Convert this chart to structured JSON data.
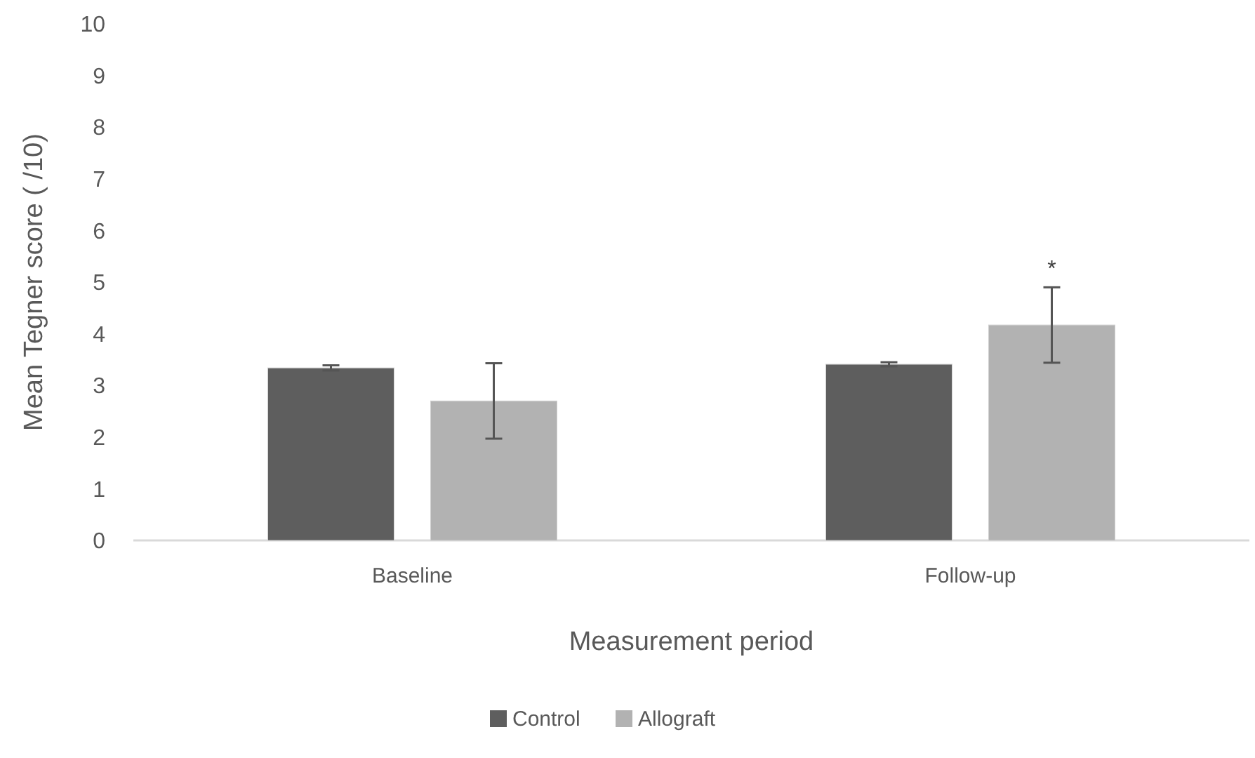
{
  "chart_data": {
    "type": "bar",
    "xlabel": "Measurement period",
    "ylabel": "Mean Tegner score ( /10)",
    "categories": [
      "Baseline",
      "Follow-up"
    ],
    "series": [
      {
        "name": "Control",
        "color": "#5e5e5e",
        "values": [
          3.34,
          3.41
        ],
        "errors": [
          0.05,
          0.04
        ]
      },
      {
        "name": "Allograft",
        "color": "#b2b2b2",
        "values": [
          2.7,
          4.17
        ],
        "errors": [
          0.73,
          0.73
        ]
      }
    ],
    "ylim": [
      0,
      10
    ],
    "yticks": [
      0,
      1,
      2,
      3,
      4,
      5,
      6,
      7,
      8,
      9,
      10
    ],
    "grid": false,
    "legend": "bottom",
    "annotations": [
      "*"
    ]
  }
}
